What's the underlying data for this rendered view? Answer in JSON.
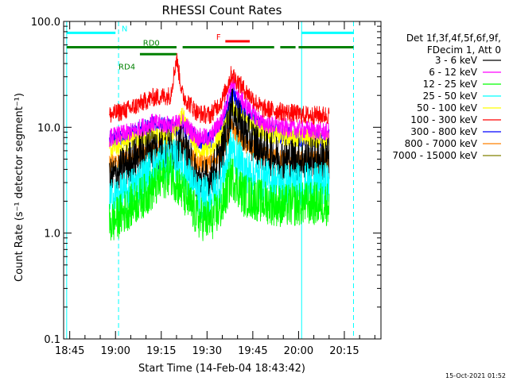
{
  "chart_data": {
    "type": "line",
    "title": "RHESSI Count Rates",
    "xlabel": "Start Time (14-Feb-04 18:43:42)",
    "ylabel": "Count Rate (s⁻¹ detector segment⁻¹)",
    "y_scale": "log",
    "ylim": [
      0.1,
      100.0
    ],
    "xlim": [
      "18:43",
      "20:27"
    ],
    "x_ticks": [
      "18:45",
      "19:00",
      "19:15",
      "19:30",
      "19:45",
      "20:00",
      "20:15"
    ],
    "y_ticks": [
      "0.1",
      "1.0",
      "10.0",
      "100.0"
    ],
    "legend_header": [
      "Det 1f,3f,4f,5f,6f,9f,",
      "FDecim 1, Att 0"
    ],
    "legend_placement": "right",
    "data_start": "18:58",
    "data_end": "20:10",
    "series": [
      {
        "name": "3 - 6 keV",
        "color": "#000000",
        "values": {
          "18:58": 3.1,
          "19:05": 4.8,
          "19:12": 6.5,
          "19:18": 6.0,
          "19:22": 6.5,
          "19:27": 3.2,
          "19:31": 3.2,
          "19:35": 6.0,
          "19:38": 15.0,
          "19:42": 9.5,
          "19:48": 6.0,
          "19:55": 5.0,
          "20:02": 5.0,
          "20:10": 5.0
        }
      },
      {
        "name": "6 - 12 keV",
        "color": "#ff00ff",
        "values": {
          "18:58": 8.0,
          "19:05": 9.0,
          "19:12": 11.0,
          "19:18": 10.5,
          "19:22": 11.0,
          "19:27": 8.0,
          "19:31": 8.0,
          "19:35": 12.0,
          "19:38": 27.0,
          "19:42": 17.0,
          "19:48": 11.0,
          "19:55": 10.0,
          "20:02": 9.5,
          "20:10": 9.0
        }
      },
      {
        "name": "12 - 25 keV",
        "color": "#00ff00",
        "values": {
          "18:58": 1.2,
          "19:05": 1.8,
          "19:12": 2.6,
          "19:18": 3.8,
          "19:22": 2.4,
          "19:27": 1.4,
          "19:31": 1.3,
          "19:35": 1.8,
          "19:38": 3.5,
          "19:42": 2.3,
          "19:48": 2.0,
          "19:55": 1.8,
          "20:02": 1.9,
          "20:10": 1.9
        }
      },
      {
        "name": "25 - 50 keV",
        "color": "#00ffff",
        "values": {
          "18:58": 2.0,
          "19:05": 2.6,
          "19:12": 4.0,
          "19:18": 5.0,
          "19:22": 4.5,
          "19:27": 2.2,
          "19:31": 2.2,
          "19:35": 3.2,
          "19:38": 6.5,
          "19:42": 4.0,
          "19:48": 3.2,
          "19:55": 2.9,
          "20:02": 2.9,
          "20:10": 2.9
        }
      },
      {
        "name": "50 - 100 keV",
        "color": "#ffff00",
        "values": {
          "18:58": 6.0,
          "19:05": 7.5,
          "19:12": 8.5,
          "19:18": 8.0,
          "19:22": 13.0,
          "19:27": 6.0,
          "19:31": 6.0,
          "19:35": 9.0,
          "19:38": 15.0,
          "19:42": 12.0,
          "19:48": 9.0,
          "19:55": 8.0,
          "20:02": 8.0,
          "20:10": 7.5
        }
      },
      {
        "name": "100 - 300 keV",
        "color": "#ff0000",
        "values": {
          "18:58": 13.0,
          "19:05": 15.0,
          "19:12": 19.0,
          "19:18": 20.0,
          "19:20": 45.0,
          "19:22": 20.0,
          "19:27": 13.5,
          "19:31": 13.0,
          "19:35": 18.0,
          "19:38": 32.0,
          "19:42": 23.0,
          "19:48": 15.0,
          "19:55": 14.0,
          "20:02": 13.0,
          "20:10": 13.0
        }
      },
      {
        "name": "300 - 800 keV",
        "color": "#0000ff",
        "values": {
          "18:58": 7.5,
          "19:05": 8.5,
          "19:12": 10.5,
          "19:18": 10.0,
          "19:22": 10.0,
          "19:27": 7.5,
          "19:31": 7.5,
          "19:35": 11.0,
          "19:38": 22.0,
          "19:42": 14.0,
          "19:48": 10.0,
          "19:55": 8.5,
          "20:02": 8.0,
          "20:10": 7.8
        }
      },
      {
        "name": "800 - 7000 keV",
        "color": "#ff8000",
        "values": {
          "18:58": 4.5,
          "19:05": 5.2,
          "19:12": 6.5,
          "19:18": 6.0,
          "19:22": 6.5,
          "19:27": 4.5,
          "19:31": 4.5,
          "19:35": 6.0,
          "19:38": 10.0,
          "19:42": 7.0,
          "19:48": 5.5,
          "19:55": 5.0,
          "20:02": 5.0,
          "20:10": 5.0
        }
      },
      {
        "name": "7000 - 15000 keV",
        "color": "#808000",
        "values": {}
      }
    ],
    "annotations": {
      "vertical_lines": [
        {
          "time": "18:44",
          "color": "#00ffff",
          "style": "solid"
        },
        {
          "time": "19:01",
          "color": "#00ffff",
          "style": "dashed"
        },
        {
          "time": "20:01",
          "color": "#00ffff",
          "style": "solid"
        },
        {
          "time": "20:18",
          "color": "#00ffff",
          "style": "dashed"
        }
      ],
      "status_bars": [
        {
          "label": "N",
          "color": "#00ffff",
          "level": 78.0,
          "segments": [
            [
              "18:44",
              "19:00"
            ],
            [
              "20:01",
              "20:18"
            ]
          ],
          "label_at": "19:02"
        },
        {
          "label": "F",
          "color": "#ff0000",
          "level": 65.0,
          "segments": [
            [
              "19:36",
              "19:44"
            ]
          ],
          "label_at": "19:33"
        },
        {
          "label": "",
          "color": "#008000",
          "level": 57.0,
          "segments": [
            [
              "18:44",
              "19:20"
            ],
            [
              "19:22",
              "19:52"
            ],
            [
              "19:54",
              "19:59"
            ],
            [
              "20:00",
              "20:18"
            ]
          ]
        },
        {
          "label": "RD4",
          "color": "#008000",
          "level": 49.0,
          "segments": [
            [
              "19:08",
              "19:20"
            ]
          ],
          "label_at": "19:01"
        },
        {
          "label": "RD0",
          "color": "#008000",
          "level": 57.0,
          "segments": [],
          "label_at": "19:09"
        }
      ]
    }
  },
  "footer": {
    "date_stamp": "15-Oct-2021 01:52"
  }
}
